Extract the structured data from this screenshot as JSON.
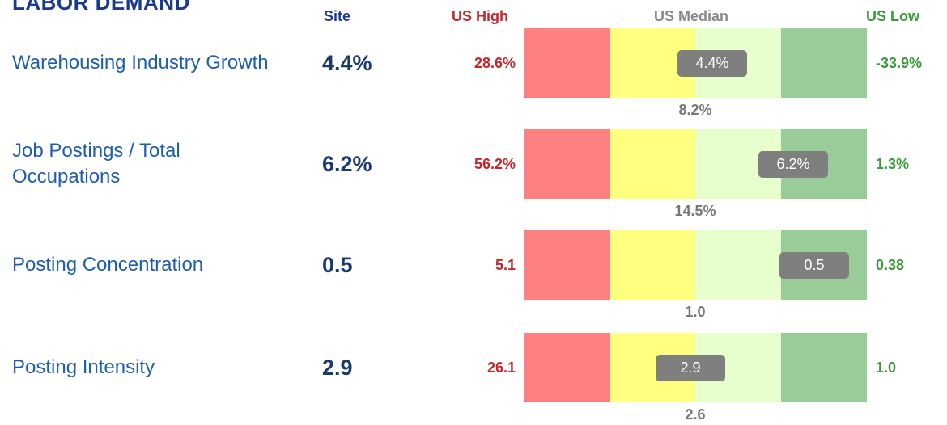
{
  "title": "LABOR DEMAND",
  "header": {
    "site": "Site",
    "us_high": "US High",
    "us_median": "US Median",
    "us_low": "US Low"
  },
  "rows": [
    {
      "metric": "Warehousing Industry Growth",
      "site": "4.4%",
      "us_high": "28.6%",
      "us_median": "8.2%",
      "us_low": "-33.9%"
    },
    {
      "metric": "Job Postings / Total Occupations",
      "site": "6.2%",
      "us_high": "56.2%",
      "us_median": "14.5%",
      "us_low": "1.3%"
    },
    {
      "metric": "Posting Concentration",
      "site": "0.5",
      "us_high": "5.1",
      "us_median": "1.0",
      "us_low": "0.38"
    },
    {
      "metric": "Posting Intensity",
      "site": "2.9",
      "us_high": "26.1",
      "us_median": "2.6",
      "us_low": "1.0"
    }
  ]
}
